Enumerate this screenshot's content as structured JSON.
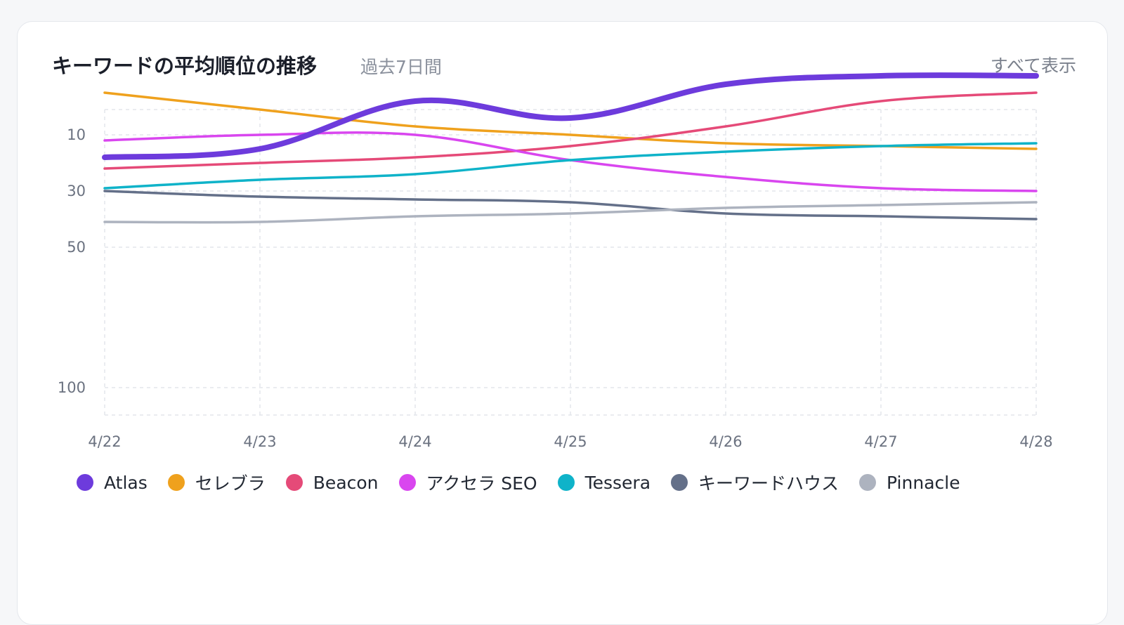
{
  "card": {
    "title": "キーワードの平均順位の推移",
    "subtitle": "過去7日間",
    "view_all": "すべて表示"
  },
  "chart_data": {
    "type": "line",
    "x": [
      "4/22",
      "4/23",
      "4/24",
      "4/25",
      "4/26",
      "4/27",
      "4/28"
    ],
    "y_ticks": [
      10,
      30,
      50,
      100
    ],
    "y_range": [
      7,
      110
    ],
    "y_inverted": true,
    "grid": true,
    "legend_position": "bottom-left",
    "series": [
      {
        "name": "Atlas",
        "color": "#6d3bdc",
        "values": [
          18,
          15,
          6,
          8,
          4,
          3,
          3
        ],
        "bold": true
      },
      {
        "name": "セレブラ",
        "color": "#efa11d",
        "values": [
          5,
          7,
          9,
          10,
          13,
          14,
          15
        ]
      },
      {
        "name": "Beacon",
        "color": "#e54a78",
        "values": [
          22,
          20,
          18,
          14,
          9,
          6,
          5
        ]
      },
      {
        "name": "アクセラ SEO",
        "color": "#d946ef",
        "values": [
          12,
          10,
          10,
          19,
          25,
          29,
          30
        ]
      },
      {
        "name": "Tessera",
        "color": "#0fb3c9",
        "values": [
          29,
          26,
          24,
          19,
          16,
          14,
          13
        ]
      },
      {
        "name": "キーワードハウス",
        "color": "#647089",
        "values": [
          30,
          32,
          33,
          34,
          38,
          39,
          40
        ]
      },
      {
        "name": "Pinnacle",
        "color": "#adb3bf",
        "values": [
          41,
          41,
          39,
          38,
          36,
          35,
          34
        ]
      }
    ]
  }
}
